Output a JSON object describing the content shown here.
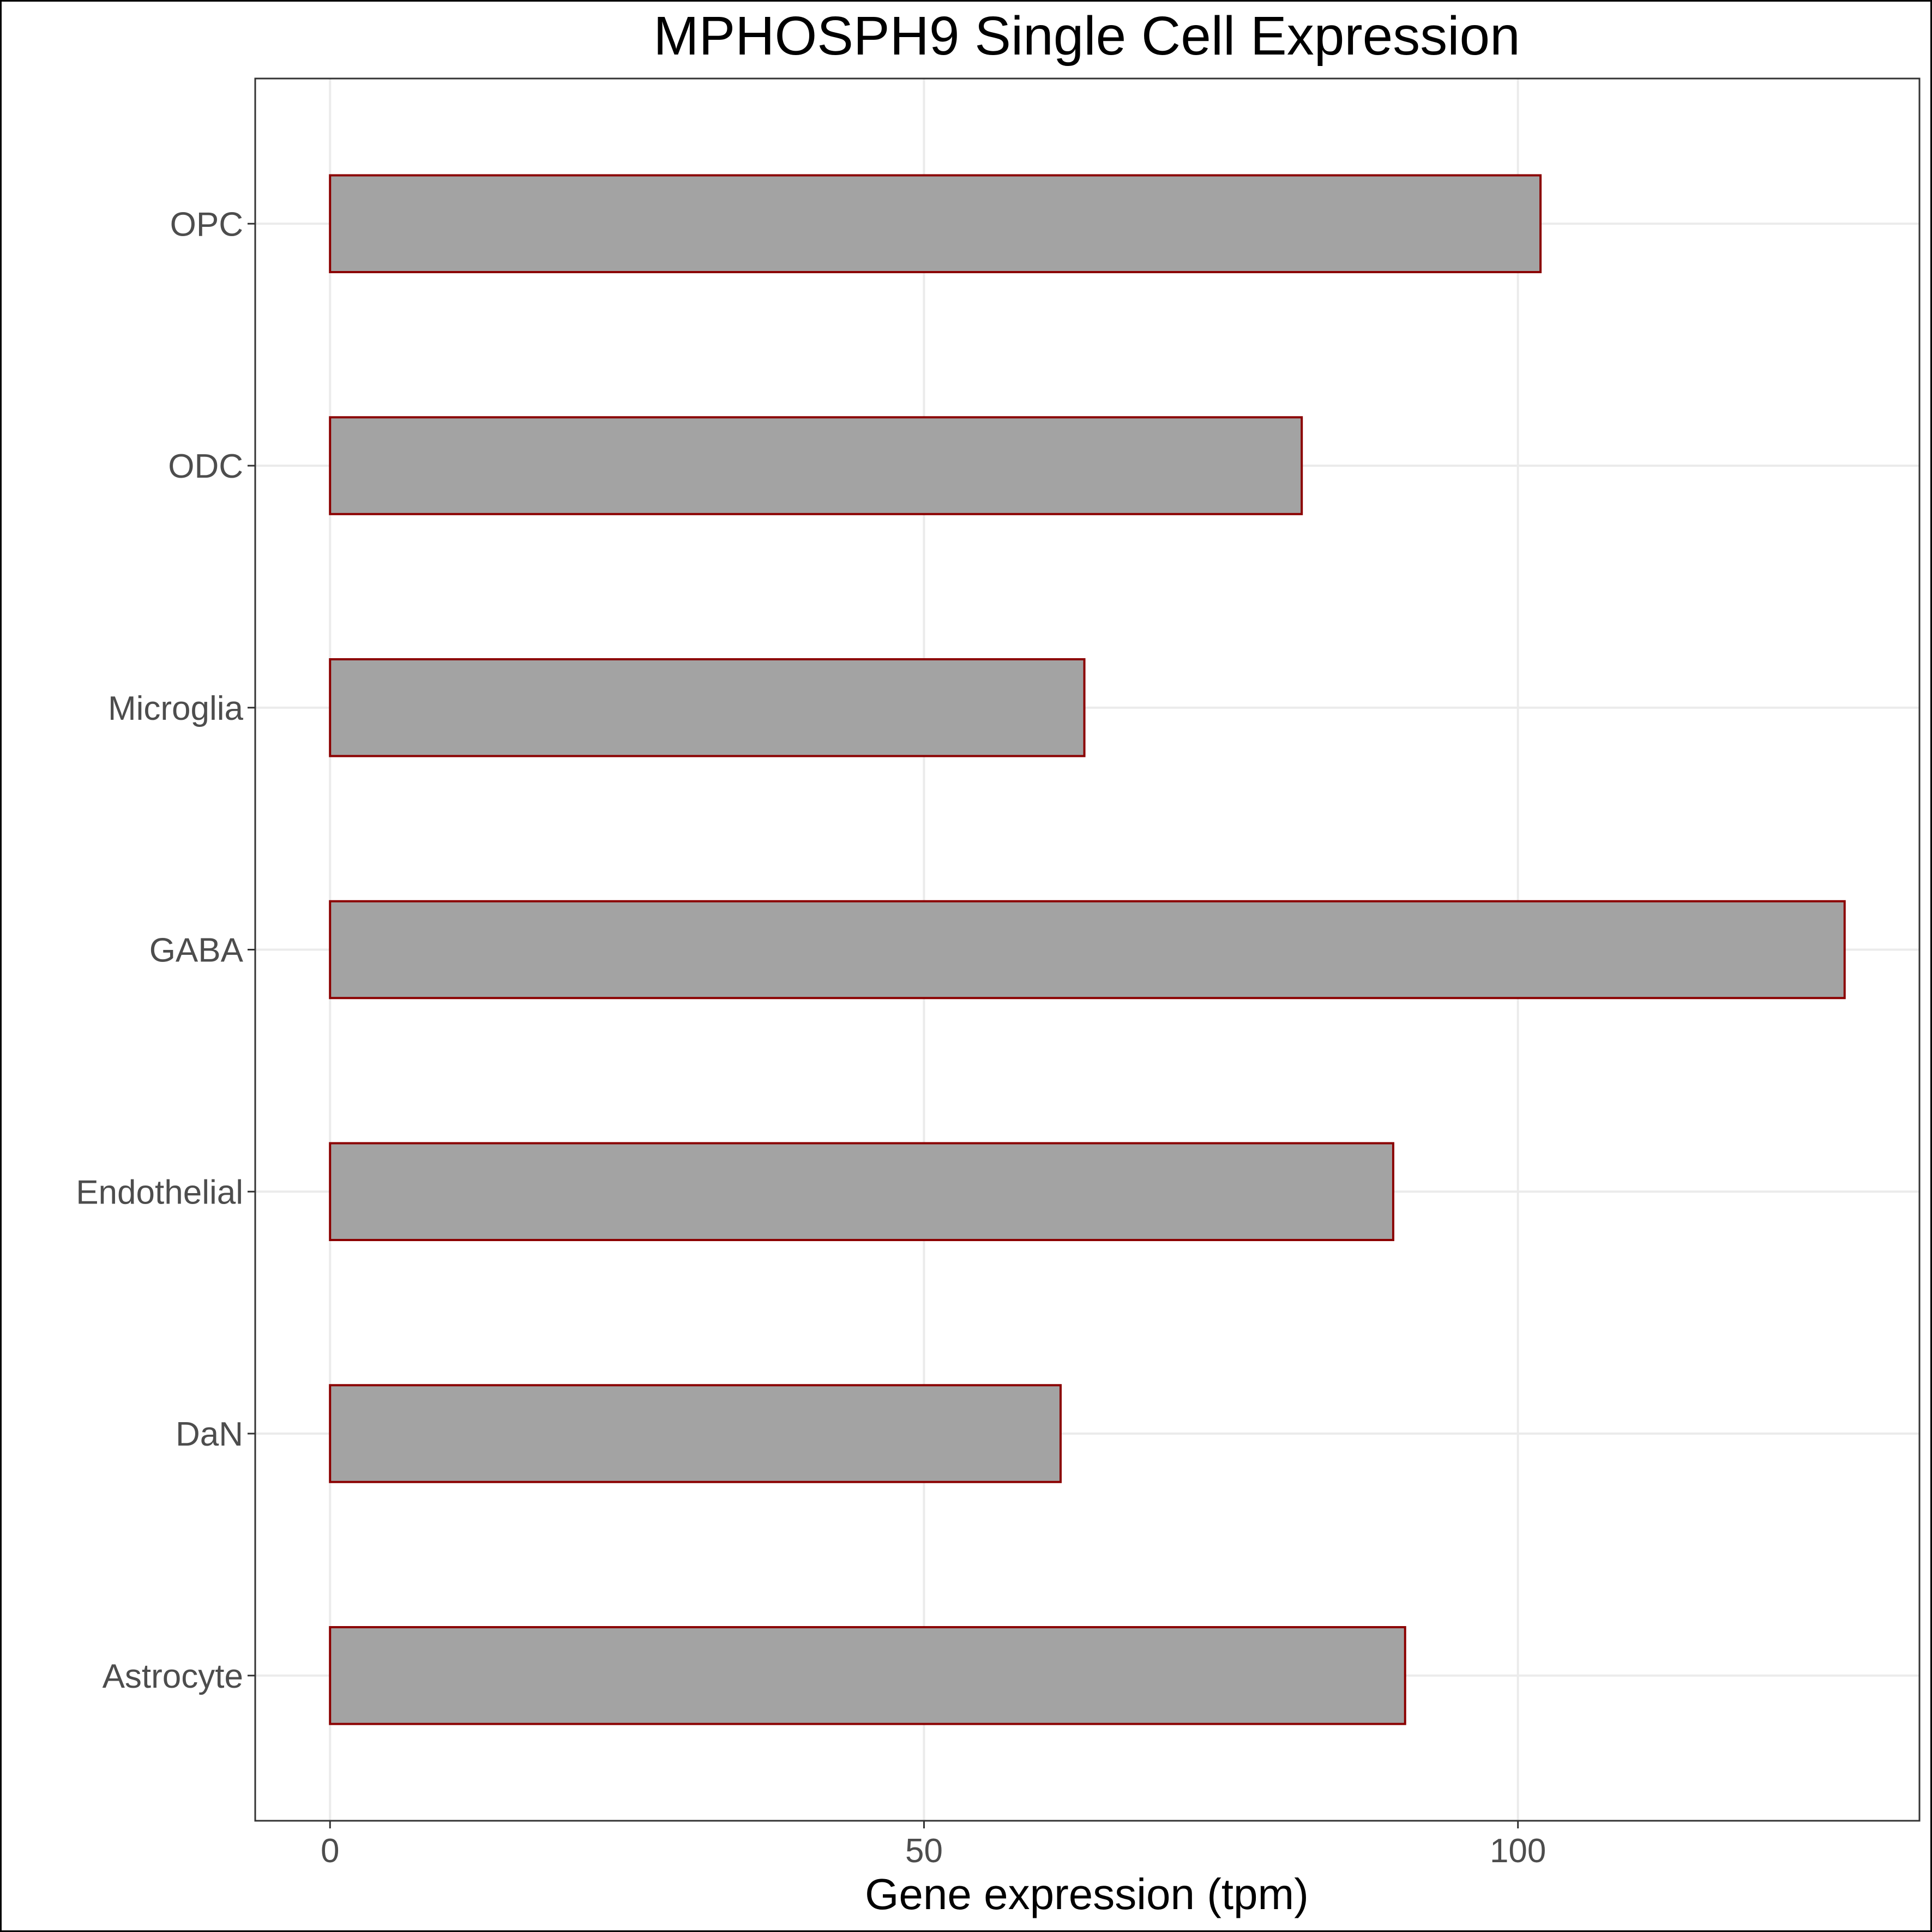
{
  "chart_data": {
    "type": "bar",
    "orientation": "horizontal",
    "title": "MPHOSPH9 Single Cell Expression",
    "xlabel": "Gene expression (tpm)",
    "ylabel": "",
    "categories": [
      "Astrocyte",
      "DaN",
      "Endothelial",
      "GABA",
      "Microglia",
      "ODC",
      "OPC"
    ],
    "values": [
      90.5,
      61.5,
      89.5,
      127.5,
      63.5,
      81.8,
      101.9
    ],
    "xlim": [
      -6.3,
      133.8
    ],
    "xticks": [
      0,
      50,
      100
    ],
    "grid": true,
    "legend": "none",
    "colors": {
      "bar_fill": "#a3a3a3",
      "bar_stroke": "#8b0000",
      "grid": "#ebebeb",
      "panel_border": "#333333"
    }
  }
}
